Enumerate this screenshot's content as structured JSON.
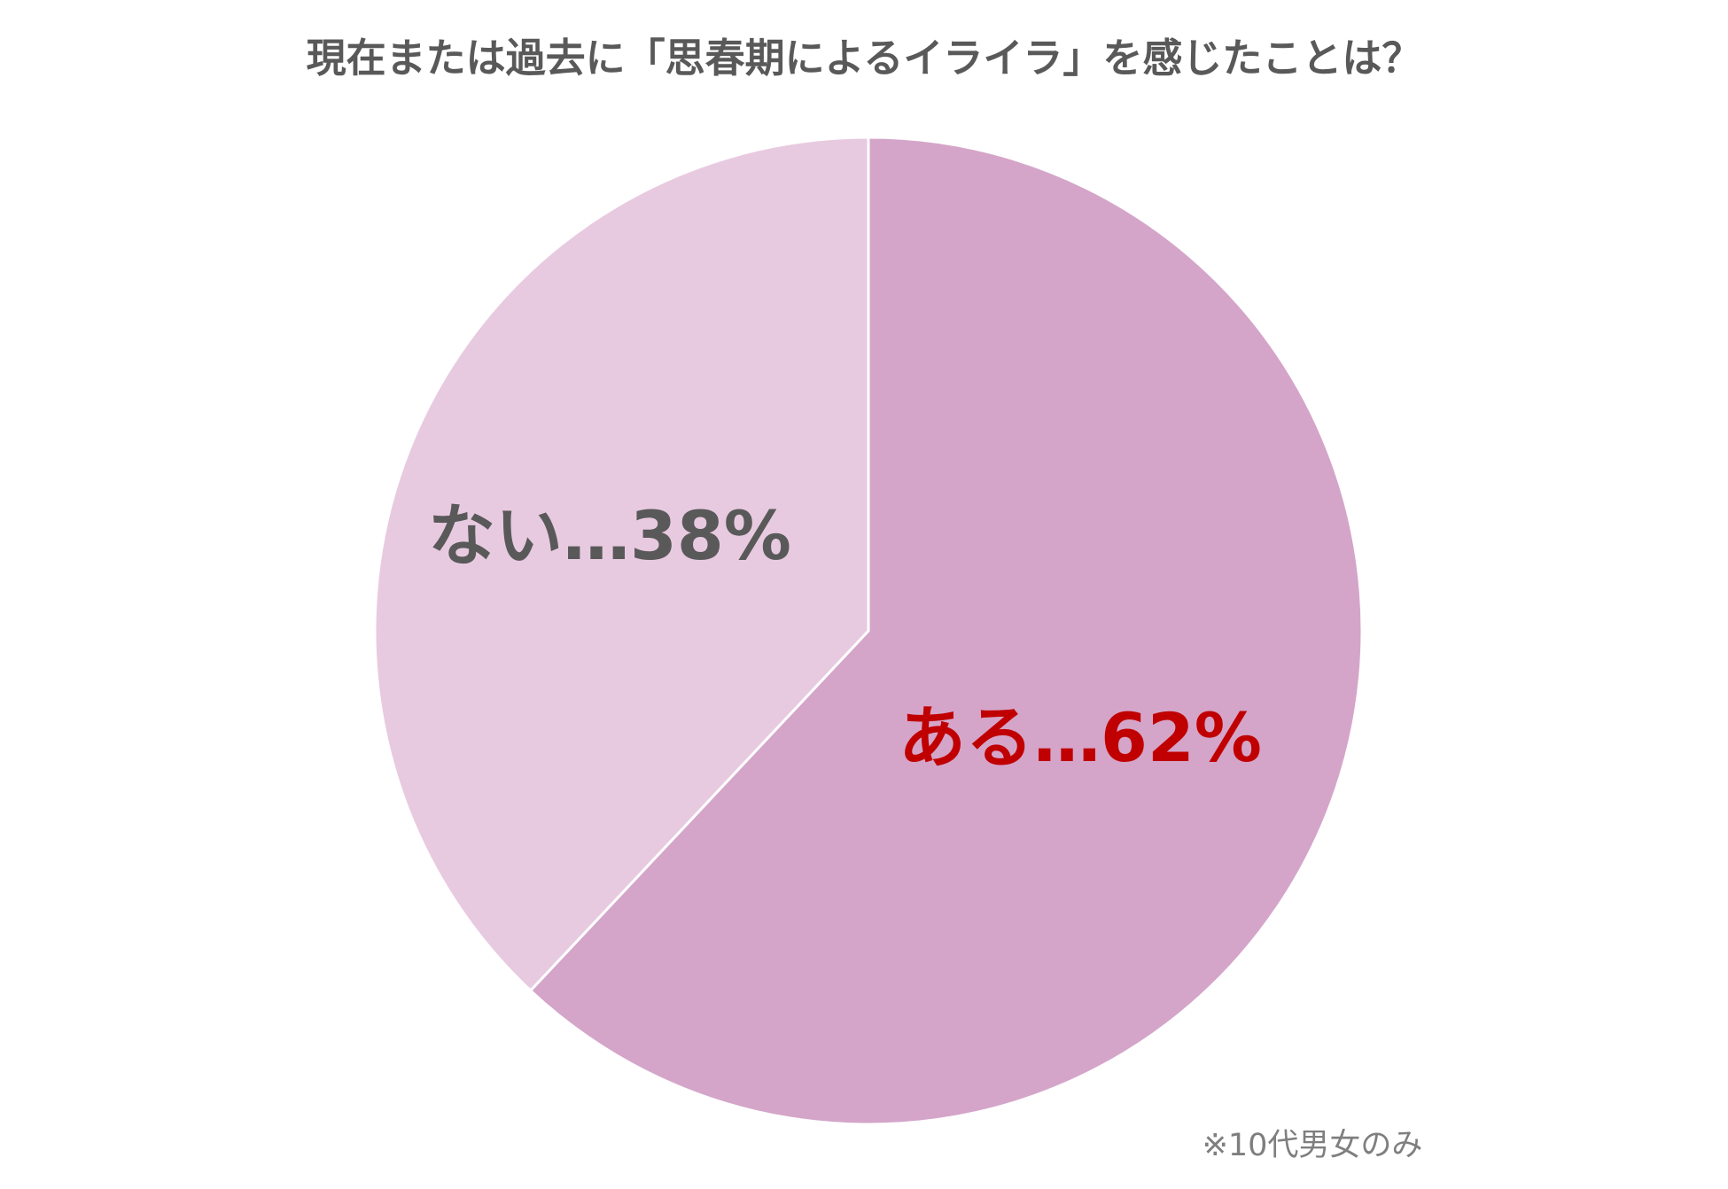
{
  "chart_data": {
    "type": "pie",
    "title": "現在または過去に「思春期によるイライラ」を感じたことは？",
    "categories": [
      "ある",
      "ない"
    ],
    "values": [
      62,
      38
    ],
    "value_labels": [
      "ある…62%",
      "ない…38%"
    ],
    "colors": [
      "#d4a5c9",
      "#e8cae0"
    ],
    "label_colors": [
      "#c00000",
      "#595959"
    ],
    "note": "※10代男女のみ"
  }
}
